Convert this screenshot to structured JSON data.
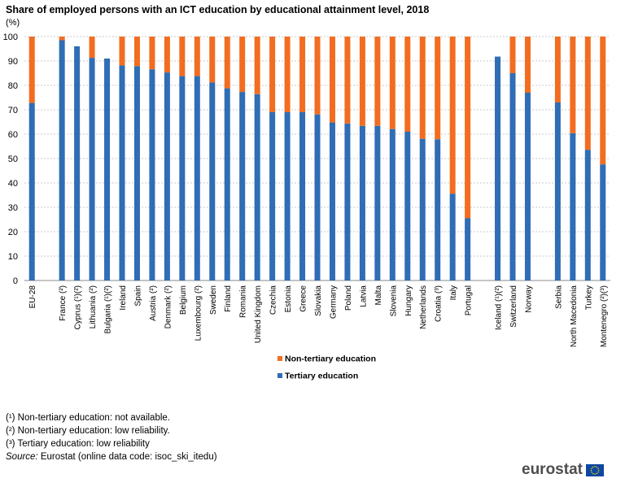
{
  "title": "Share of employed persons with an ICT education by educational attainment level, 2018",
  "unit": "(%)",
  "chart_data": {
    "type": "bar",
    "stacked": true,
    "ylim": [
      0,
      100
    ],
    "yticks": [
      0,
      10,
      20,
      30,
      40,
      50,
      60,
      70,
      80,
      90,
      100
    ],
    "grid": true,
    "legend_position": "bottom",
    "categories": [
      "EU-28",
      "",
      "France (²)",
      "Cyprus (¹)(²)",
      "Lithuania (²)",
      "Bulgaria (¹)(²)",
      "Ireland",
      "Spain",
      "Austria (²)",
      "Denmark (²)",
      "Belgium",
      "Luxembourg (²)",
      "Sweden",
      "Finland",
      "Romania",
      "United Kingdom",
      "Czechia",
      "Estonia",
      "Greece",
      "Slovakia",
      "Germany",
      "Poland",
      "Latvia",
      "Malta",
      "Slovenia",
      "Hungary",
      "Netherlands",
      "Croatia (³)",
      "Italy",
      "Portugal",
      "",
      "Iceland (¹)(²)",
      "Switzerland",
      "Norway",
      "",
      "Serbia",
      "North Macedonia",
      "Turkey",
      "Montenegro (²)(³)"
    ],
    "series": [
      {
        "name": "Tertiary education",
        "color": "#2f6db5",
        "values": [
          72.8,
          null,
          98.5,
          96,
          91.3,
          91,
          88.2,
          87.9,
          86.6,
          85.3,
          83.8,
          83.8,
          81.2,
          78.8,
          77.3,
          76.4,
          69,
          69,
          69,
          68.1,
          64.8,
          64.4,
          63.4,
          63.4,
          62.1,
          61,
          58.1,
          57.9,
          35.6,
          25.5,
          null,
          91.8,
          85,
          77,
          null,
          73,
          60.4,
          53.6,
          47.6
        ]
      },
      {
        "name": "Non-tertiary education",
        "color": "#f26d21",
        "values": [
          27.2,
          null,
          1.5,
          0,
          8.7,
          0,
          11.8,
          12.1,
          13.4,
          14.7,
          16.2,
          16.2,
          18.8,
          21.2,
          22.7,
          23.6,
          31,
          31,
          31,
          31.9,
          35.2,
          35.6,
          36.6,
          36.6,
          37.9,
          39,
          41.9,
          42.1,
          64.4,
          74.5,
          null,
          0,
          15,
          23,
          null,
          27,
          39.6,
          46.4,
          52.4
        ]
      }
    ],
    "legend": [
      "Non-tertiary education",
      "Tertiary education"
    ]
  },
  "footnotes": [
    "(¹) Non-tertiary education: not available.",
    "(²) Non-tertiary education: low reliability.",
    "(³) Tertiary education: low reliability"
  ],
  "source": {
    "label": "Source:",
    "text": "Eurostat (online data code: isoc_ski_itedu)"
  },
  "logo": {
    "text": "eurostat",
    "flag_icon": "eu-flag-icon"
  }
}
